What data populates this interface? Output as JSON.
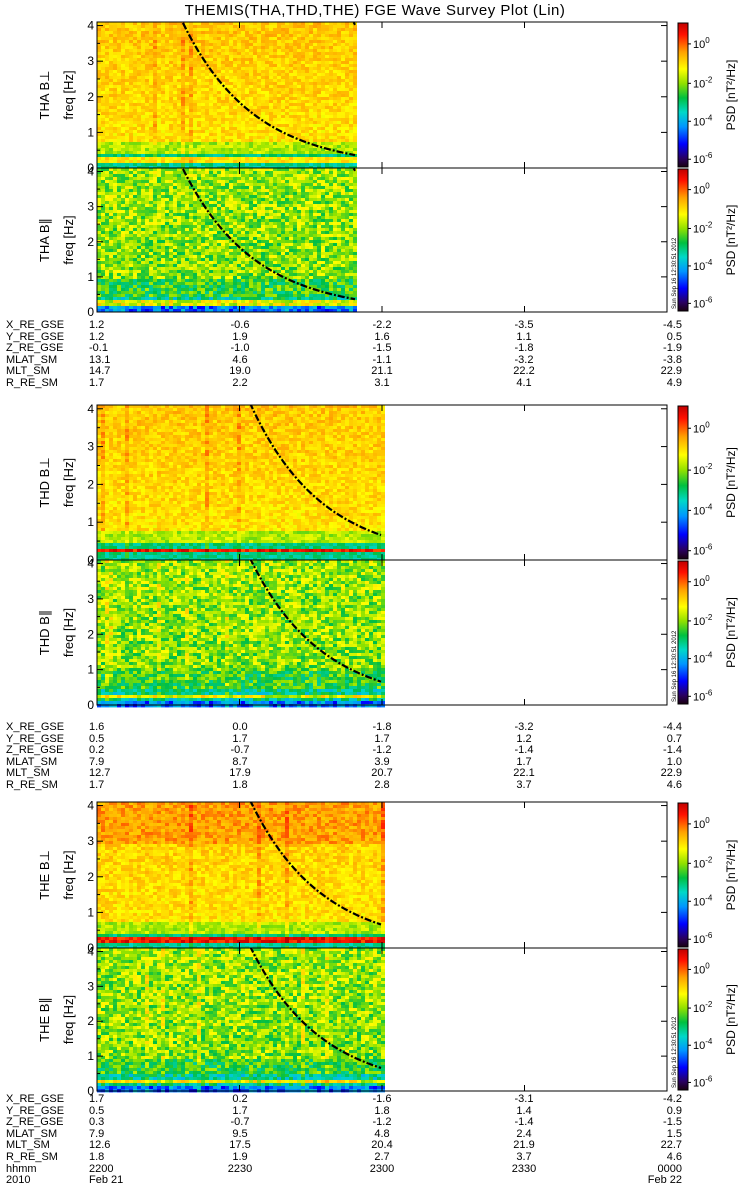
{
  "title": "THEMIS(THA,THD,THE) FGE Wave Survey Plot (Lin)",
  "colorbar": {
    "label": "PSD [nT²/Hz]",
    "tick_exponents": [
      "0",
      "-2",
      "-4",
      "-6"
    ],
    "tick_base": "10",
    "stamp": "Sun Sep 16 12:30:51 2012"
  },
  "chart_data": [
    {
      "type": "heatmap",
      "probe": "THA",
      "panels": [
        {
          "name": "THA B⊥",
          "ylabel": "freq [Hz]"
        },
        {
          "name": "THA B∥",
          "ylabel": "freq [Hz]"
        }
      ],
      "y_ticks": [
        "0",
        "1",
        "2",
        "3",
        "4"
      ],
      "ylim": [
        0,
        4.1
      ],
      "data_end_fraction": 0.455,
      "ephemeris": {
        "labels": [
          "X_RE_GSE",
          "Y_RE_GSE",
          "Z_RE_GSE",
          "MLAT_SM",
          "MLT_SM",
          "R_RE_SM"
        ],
        "columns": [
          [
            "1.2",
            "1.2",
            "-0.1",
            "13.1",
            "14.7",
            "1.7"
          ],
          [
            "-0.6",
            "1.9",
            "-1.0",
            "4.6",
            "19.0",
            "2.2"
          ],
          [
            "-2.2",
            "1.6",
            "-1.5",
            "-1.1",
            "21.1",
            "3.1"
          ],
          [
            "-3.5",
            "1.1",
            "-1.8",
            "-3.2",
            "22.2",
            "4.1"
          ],
          [
            "-4.5",
            "0.5",
            "-1.9",
            "-3.8",
            "22.9",
            "4.9"
          ]
        ]
      }
    },
    {
      "type": "heatmap",
      "probe": "THD",
      "panels": [
        {
          "name": "THD B⊥",
          "ylabel": "freq [Hz]"
        },
        {
          "name": "THD B∥",
          "ylabel": "freq [Hz]"
        }
      ],
      "y_ticks": [
        "0",
        "1",
        "2",
        "3",
        "4"
      ],
      "ylim": [
        0,
        4.1
      ],
      "data_end_fraction": 0.5,
      "ephemeris": {
        "labels": [
          "X_RE_GSE",
          "Y_RE_GSE",
          "Z_RE_GSE",
          "MLAT_SM",
          "MLT_SM",
          "R_RE_SM"
        ],
        "columns": [
          [
            "1.6",
            "0.5",
            "0.2",
            "7.9",
            "12.7",
            "1.7"
          ],
          [
            "0.0",
            "1.7",
            "-0.7",
            "8.7",
            "17.9",
            "1.8"
          ],
          [
            "-1.8",
            "1.7",
            "-1.2",
            "3.9",
            "20.7",
            "2.8"
          ],
          [
            "-3.2",
            "1.2",
            "-1.4",
            "1.7",
            "22.1",
            "3.7"
          ],
          [
            "-4.4",
            "0.7",
            "-1.4",
            "1.0",
            "22.9",
            "4.6"
          ]
        ]
      }
    },
    {
      "type": "heatmap",
      "probe": "THE",
      "panels": [
        {
          "name": "THE B⊥",
          "ylabel": "freq [Hz]"
        },
        {
          "name": "THE B∥",
          "ylabel": "freq [Hz]"
        }
      ],
      "y_ticks": [
        "0",
        "1",
        "2",
        "3",
        "4"
      ],
      "ylim": [
        0,
        4.1
      ],
      "data_end_fraction": 0.5,
      "ephemeris": {
        "labels": [
          "X_RE_GSE",
          "Y_RE_GSE",
          "Z_RE_GSE",
          "MLAT_SM",
          "MLT_SM",
          "R_RE_SM",
          "hhmm",
          "2010"
        ],
        "columns": [
          [
            "1.7",
            "0.5",
            "0.3",
            "7.9",
            "12.6",
            "1.8",
            "2200",
            "Feb 21"
          ],
          [
            "0.2",
            "1.7",
            "-0.7",
            "9.5",
            "17.5",
            "1.9",
            "2230",
            ""
          ],
          [
            "-1.6",
            "1.8",
            "-1.2",
            "4.8",
            "20.4",
            "2.7",
            "2300",
            ""
          ],
          [
            "-3.1",
            "1.4",
            "-1.4",
            "2.4",
            "21.9",
            "3.7",
            "2330",
            ""
          ],
          [
            "-4.2",
            "0.9",
            "-1.5",
            "1.5",
            "22.7",
            "4.6",
            "0000",
            "Feb 22"
          ]
        ]
      }
    }
  ]
}
